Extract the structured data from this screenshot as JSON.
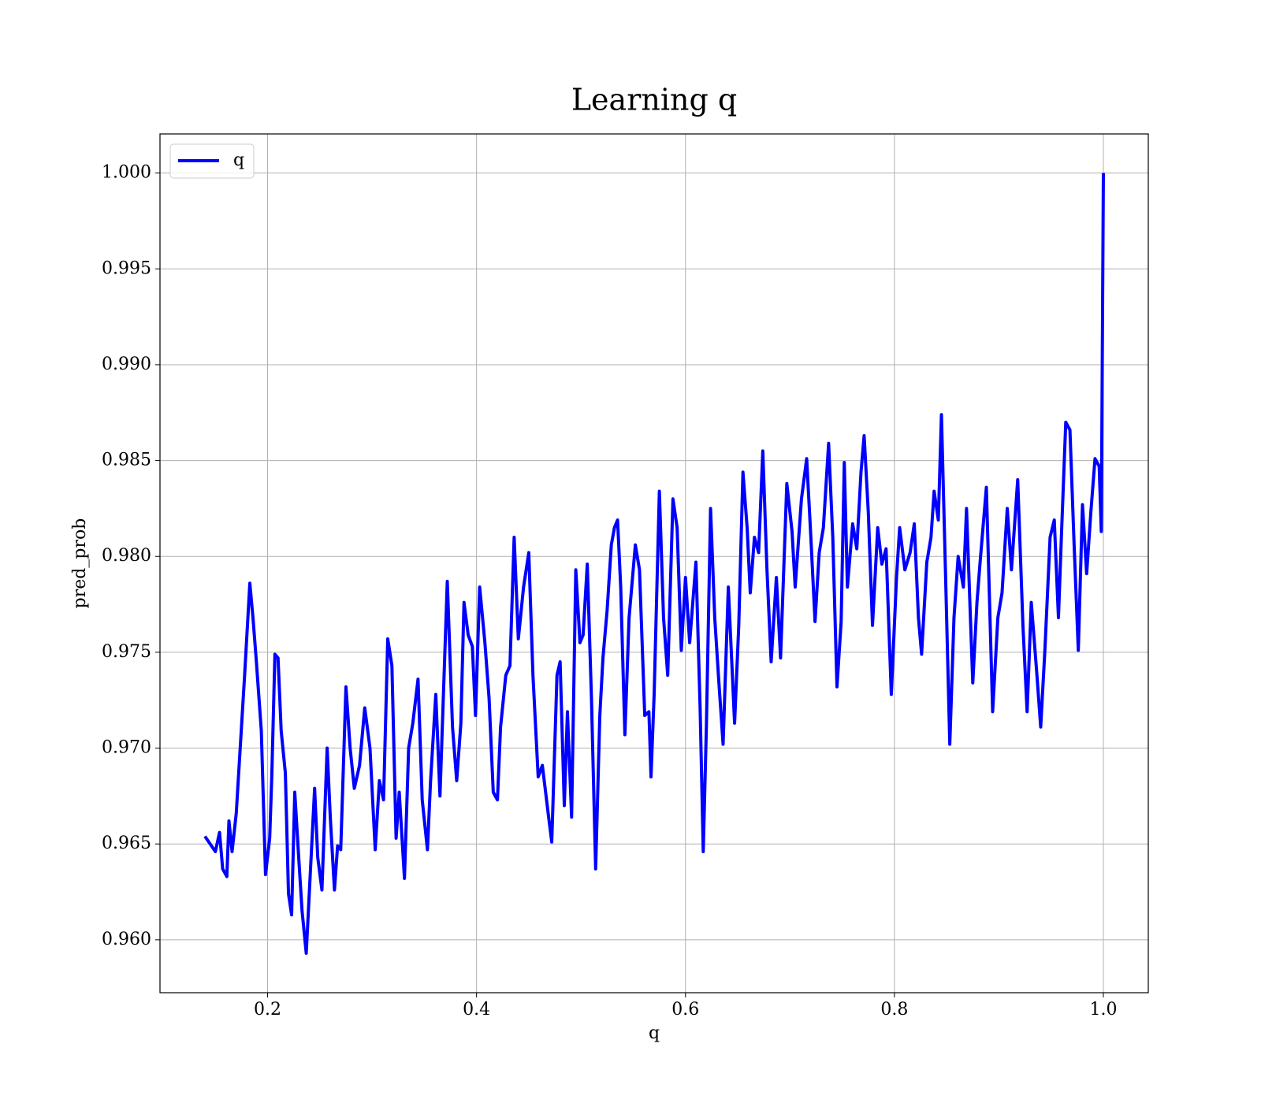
{
  "chart_data": {
    "type": "line",
    "title": "Learning q",
    "xlabel": "q",
    "ylabel": "pred_prob",
    "x": [
      0.14,
      0.15,
      0.154,
      0.157,
      0.161,
      0.163,
      0.166,
      0.17,
      0.178,
      0.183,
      0.186,
      0.189,
      0.194,
      0.198,
      0.202,
      0.204,
      0.207,
      0.21,
      0.213,
      0.217,
      0.22,
      0.223,
      0.226,
      0.23,
      0.233,
      0.237,
      0.241,
      0.245,
      0.248,
      0.252,
      0.257,
      0.26,
      0.264,
      0.267,
      0.27,
      0.275,
      0.279,
      0.283,
      0.288,
      0.293,
      0.298,
      0.303,
      0.307,
      0.311,
      0.315,
      0.319,
      0.323,
      0.326,
      0.331,
      0.335,
      0.339,
      0.344,
      0.348,
      0.353,
      0.356,
      0.361,
      0.365,
      0.372,
      0.377,
      0.381,
      0.385,
      0.388,
      0.392,
      0.396,
      0.399,
      0.403,
      0.408,
      0.412,
      0.416,
      0.42,
      0.423,
      0.428,
      0.432,
      0.436,
      0.44,
      0.445,
      0.45,
      0.454,
      0.459,
      0.463,
      0.469,
      0.472,
      0.477,
      0.48,
      0.484,
      0.487,
      0.491,
      0.495,
      0.499,
      0.502,
      0.506,
      0.51,
      0.514,
      0.518,
      0.521,
      0.525,
      0.529,
      0.532,
      0.535,
      0.538,
      0.542,
      0.546,
      0.552,
      0.556,
      0.561,
      0.565,
      0.567,
      0.57,
      0.575,
      0.579,
      0.583,
      0.588,
      0.592,
      0.596,
      0.6,
      0.604,
      0.61,
      0.614,
      0.617,
      0.62,
      0.624,
      0.628,
      0.632,
      0.636,
      0.641,
      0.647,
      0.651,
      0.655,
      0.659,
      0.662,
      0.666,
      0.67,
      0.674,
      0.678,
      0.682,
      0.687,
      0.691,
      0.697,
      0.702,
      0.705,
      0.711,
      0.716,
      0.72,
      0.724,
      0.728,
      0.732,
      0.737,
      0.741,
      0.745,
      0.749,
      0.752,
      0.755,
      0.76,
      0.764,
      0.768,
      0.771,
      0.775,
      0.779,
      0.784,
      0.788,
      0.792,
      0.797,
      0.802,
      0.805,
      0.81,
      0.815,
      0.819,
      0.823,
      0.826,
      0.831,
      0.835,
      0.838,
      0.842,
      0.845,
      0.849,
      0.853,
      0.857,
      0.861,
      0.866,
      0.869,
      0.873,
      0.875,
      0.879,
      0.882,
      0.888,
      0.894,
      0.899,
      0.903,
      0.908,
      0.912,
      0.918,
      0.923,
      0.927,
      0.931,
      0.936,
      0.94,
      0.944,
      0.949,
      0.953,
      0.957,
      0.96,
      0.964,
      0.968,
      0.972,
      0.976,
      0.98,
      0.984,
      0.988,
      0.992,
      0.996,
      0.998,
      1.0
    ],
    "series": [
      {
        "name": "q",
        "color": "#0000ff",
        "values": [
          0.9654,
          0.9646,
          0.9656,
          0.9637,
          0.9633,
          0.9662,
          0.9646,
          0.9666,
          0.9738,
          0.9786,
          0.9768,
          0.9747,
          0.9709,
          0.9634,
          0.9653,
          0.9685,
          0.9749,
          0.9747,
          0.9709,
          0.9687,
          0.9624,
          0.9613,
          0.9677,
          0.9641,
          0.9615,
          0.9593,
          0.9636,
          0.9679,
          0.9643,
          0.9626,
          0.97,
          0.9664,
          0.9626,
          0.9649,
          0.9647,
          0.9732,
          0.97,
          0.9679,
          0.9691,
          0.9721,
          0.97,
          0.9647,
          0.9683,
          0.9673,
          0.9757,
          0.9743,
          0.9653,
          0.9677,
          0.9632,
          0.97,
          0.9713,
          0.9736,
          0.9673,
          0.9647,
          0.9683,
          0.9728,
          0.9675,
          0.9787,
          0.9711,
          0.9683,
          0.9713,
          0.9776,
          0.9759,
          0.9753,
          0.9717,
          0.9784,
          0.9755,
          0.9726,
          0.9677,
          0.9673,
          0.9711,
          0.9738,
          0.9743,
          0.981,
          0.9757,
          0.9784,
          0.9802,
          0.9738,
          0.9685,
          0.9691,
          0.9664,
          0.9651,
          0.9738,
          0.9745,
          0.967,
          0.9719,
          0.9664,
          0.9793,
          0.9755,
          0.9759,
          0.9796,
          0.9726,
          0.9637,
          0.9717,
          0.9747,
          0.9772,
          0.9806,
          0.9815,
          0.9819,
          0.9784,
          0.9707,
          0.9768,
          0.9806,
          0.9793,
          0.9717,
          0.9719,
          0.9685,
          0.9728,
          0.9834,
          0.9768,
          0.9738,
          0.983,
          0.9815,
          0.9751,
          0.9789,
          0.9755,
          0.9797,
          0.9721,
          0.9646,
          0.9711,
          0.9825,
          0.9768,
          0.9734,
          0.9702,
          0.9784,
          0.9713,
          0.9764,
          0.9844,
          0.9815,
          0.9781,
          0.981,
          0.9802,
          0.9855,
          0.9793,
          0.9745,
          0.9789,
          0.9747,
          0.9838,
          0.9813,
          0.9784,
          0.983,
          0.9851,
          0.981,
          0.9766,
          0.9802,
          0.9815,
          0.9859,
          0.981,
          0.9732,
          0.9766,
          0.9849,
          0.9784,
          0.9817,
          0.9804,
          0.9844,
          0.9863,
          0.9823,
          0.9764,
          0.9815,
          0.9796,
          0.9804,
          0.9728,
          0.9789,
          0.9815,
          0.9793,
          0.9802,
          0.9817,
          0.9768,
          0.9749,
          0.9797,
          0.981,
          0.9834,
          0.9819,
          0.9874,
          0.9789,
          0.9702,
          0.9768,
          0.98,
          0.9784,
          0.9825,
          0.9764,
          0.9734,
          0.9776,
          0.9797,
          0.9836,
          0.9719,
          0.9768,
          0.9781,
          0.9825,
          0.9793,
          0.984,
          0.9764,
          0.9719,
          0.9776,
          0.9741,
          0.9711,
          0.9751,
          0.981,
          0.9819,
          0.9768,
          0.9813,
          0.987,
          0.9866,
          0.9806,
          0.9751,
          0.9827,
          0.9791,
          0.9823,
          0.9851,
          0.9847,
          0.9813,
          1.0
        ]
      }
    ],
    "xlim": [
      0.097,
      1.043
    ],
    "ylim": [
      0.95724,
      1.00204
    ],
    "xticks": [
      0.2,
      0.4,
      0.6,
      0.8,
      {
        "value": 1,
        "label": "1.0"
      }
    ],
    "yticks": [
      {
        "value": 0.96,
        "label": "0.960"
      },
      0.965,
      {
        "value": 0.97,
        "label": "0.970"
      },
      0.975,
      {
        "value": 0.98,
        "label": "0.980"
      },
      0.985,
      {
        "value": 0.99,
        "label": "0.990"
      },
      0.995,
      {
        "value": 1,
        "label": "1.000"
      }
    ],
    "grid": true,
    "legend": "upper left"
  }
}
